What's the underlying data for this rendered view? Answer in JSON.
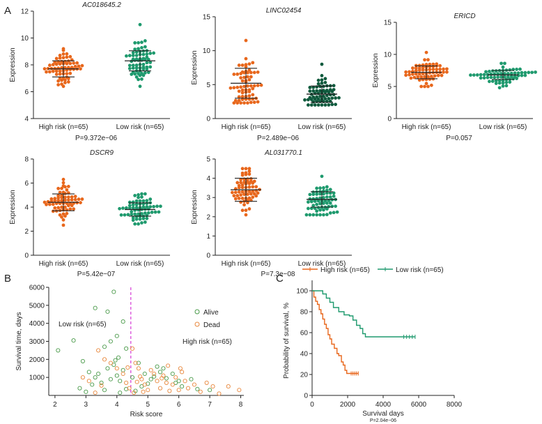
{
  "panel_labels": [
    "A",
    "B",
    "C"
  ],
  "colors": {
    "high": "#e8671c",
    "low": "#1f9a6e",
    "low_dark": "#0f5a3d",
    "alive": "#4a9a4a",
    "dead": "#e8873c",
    "cutoff": "#d63bd6",
    "axis": "#222222"
  },
  "chart_data": [
    {
      "id": "A1",
      "type": "scatter",
      "title": "AC018645.2",
      "ylabel": "Expression",
      "categories": [
        "High risk (n=65)",
        "Low risk (n=65)"
      ],
      "ylim": [
        4,
        12
      ],
      "yticks": [
        4,
        6,
        8,
        10,
        12
      ],
      "groups": [
        {
          "name": "High risk (n=65)",
          "n": 65,
          "mean": 7.7,
          "sd": 0.6,
          "min": 6.4,
          "max": 9.2,
          "color": "high"
        },
        {
          "name": "Low risk (n=65)",
          "n": 65,
          "mean": 8.3,
          "sd": 0.75,
          "min": 6.4,
          "max": 11.0,
          "color": "low"
        }
      ],
      "pvalue": "P=9.372e−06"
    },
    {
      "id": "A2",
      "type": "scatter",
      "title": "LINC02454",
      "ylabel": "Expression",
      "categories": [
        "High risk (n=65)",
        "Low risk (n=65)"
      ],
      "ylim": [
        0,
        15
      ],
      "yticks": [
        0,
        5,
        10,
        15
      ],
      "groups": [
        {
          "name": "High risk (n=65)",
          "n": 65,
          "mean": 5.2,
          "sd": 2.2,
          "min": 2.3,
          "max": 11.5,
          "color": "high"
        },
        {
          "name": "Low risk (n=65)",
          "n": 65,
          "mean": 3.6,
          "sd": 1.2,
          "min": 2.0,
          "max": 8.0,
          "color": "low_dark"
        }
      ],
      "pvalue": "P=2.489e−06"
    },
    {
      "id": "A3",
      "type": "scatter",
      "title": "ERICD",
      "ylabel": "Expression",
      "categories": [
        "High risk (n=65)",
        "Low risk (n=65)"
      ],
      "ylim": [
        0,
        15
      ],
      "yticks": [
        0,
        5,
        10,
        15
      ],
      "groups": [
        {
          "name": "High risk (n=65)",
          "n": 65,
          "mean": 7.2,
          "sd": 1.0,
          "min": 5.0,
          "max": 10.3,
          "color": "high"
        },
        {
          "name": "Low risk (n=65)",
          "n": 65,
          "mean": 6.8,
          "sd": 0.7,
          "min": 4.8,
          "max": 8.6,
          "color": "low"
        }
      ],
      "pvalue": "P=0.057"
    },
    {
      "id": "A4",
      "type": "scatter",
      "title": "DSCR9",
      "ylabel": "Expression",
      "categories": [
        "High risk (n=65)",
        "Low risk (n=65)"
      ],
      "ylim": [
        0,
        8
      ],
      "yticks": [
        0,
        2,
        4,
        6,
        8
      ],
      "groups": [
        {
          "name": "High risk (n=65)",
          "n": 65,
          "mean": 4.4,
          "sd": 0.7,
          "min": 2.5,
          "max": 6.3,
          "color": "high"
        },
        {
          "name": "Low risk (n=65)",
          "n": 65,
          "mean": 3.8,
          "sd": 0.55,
          "min": 2.6,
          "max": 5.1,
          "color": "low"
        }
      ],
      "pvalue": "P=5.42e−07"
    },
    {
      "id": "A5",
      "type": "scatter",
      "title": "AL031770.1",
      "ylabel": "Expression",
      "categories": [
        "High risk (n=65)",
        "Low risk (n=65)"
      ],
      "ylim": [
        0,
        5
      ],
      "yticks": [
        0,
        1,
        2,
        3,
        4,
        5
      ],
      "groups": [
        {
          "name": "High risk (n=65)",
          "n": 65,
          "mean": 3.4,
          "sd": 0.6,
          "min": 2.1,
          "max": 4.5,
          "color": "high"
        },
        {
          "name": "Low risk (n=65)",
          "n": 65,
          "mean": 2.9,
          "sd": 0.4,
          "min": 2.1,
          "max": 4.1,
          "color": "low"
        }
      ],
      "pvalue": "P=7.3e−08"
    },
    {
      "id": "B",
      "type": "scatter",
      "xlabel": "Risk score",
      "ylabel": "Survival time, days",
      "xlim": [
        1.8,
        8.1
      ],
      "ylim": [
        0,
        6000
      ],
      "xticks": [
        2,
        3,
        4,
        5,
        6,
        7,
        8
      ],
      "yticks": [
        1000,
        2000,
        3000,
        4000,
        5000,
        6000
      ],
      "cutoff": 4.45,
      "annotations": [
        "Low risk (n=65)",
        "High risk (n=65)"
      ],
      "legend": [
        "Alive",
        "Dead"
      ],
      "alive": [
        [
          2.1,
          2500
        ],
        [
          2.6,
          3050
        ],
        [
          3.3,
          4850
        ],
        [
          3.9,
          5750
        ],
        [
          3.7,
          4650
        ],
        [
          4.2,
          4100
        ],
        [
          4.0,
          3300
        ],
        [
          3.8,
          3000
        ],
        [
          3.6,
          2700
        ],
        [
          4.3,
          2600
        ],
        [
          2.9,
          1900
        ],
        [
          3.1,
          1300
        ],
        [
          3.3,
          1000
        ],
        [
          3.5,
          700
        ],
        [
          3.8,
          900
        ],
        [
          4.0,
          1100
        ],
        [
          4.1,
          800
        ],
        [
          4.2,
          1400
        ],
        [
          3.9,
          1700
        ],
        [
          3.7,
          1500
        ],
        [
          3.4,
          1200
        ],
        [
          3.2,
          600
        ],
        [
          2.8,
          400
        ],
        [
          3.0,
          200
        ],
        [
          3.6,
          300
        ],
        [
          4.3,
          350
        ],
        [
          4.1,
          150
        ],
        [
          4.6,
          250
        ],
        [
          4.8,
          500
        ],
        [
          5.0,
          650
        ],
        [
          5.2,
          1050
        ],
        [
          5.4,
          1300
        ],
        [
          5.6,
          950
        ],
        [
          5.9,
          700
        ],
        [
          6.1,
          500
        ],
        [
          6.4,
          900
        ],
        [
          6.6,
          350
        ],
        [
          7.0,
          300
        ],
        [
          4.7,
          1800
        ],
        [
          4.9,
          1200
        ],
        [
          5.1,
          900
        ],
        [
          5.3,
          1600
        ],
        [
          5.5,
          1500
        ],
        [
          5.8,
          1200
        ],
        [
          6.0,
          800
        ],
        [
          4.5,
          1000
        ],
        [
          3.95,
          1950
        ],
        [
          4.05,
          2100
        ]
      ],
      "dead": [
        [
          2.9,
          1000
        ],
        [
          3.1,
          800
        ],
        [
          3.4,
          2500
        ],
        [
          3.6,
          2000
        ],
        [
          3.8,
          1800
        ],
        [
          4.0,
          1500
        ],
        [
          4.2,
          1200
        ],
        [
          4.3,
          700
        ],
        [
          4.5,
          2600
        ],
        [
          4.6,
          1800
        ],
        [
          4.7,
          1500
        ],
        [
          4.8,
          900
        ],
        [
          4.9,
          600
        ],
        [
          5.0,
          300
        ],
        [
          5.1,
          1400
        ],
        [
          5.2,
          1200
        ],
        [
          5.3,
          800
        ],
        [
          5.4,
          400
        ],
        [
          5.5,
          1100
        ],
        [
          5.6,
          700
        ],
        [
          5.7,
          250
        ],
        [
          5.8,
          600
        ],
        [
          5.9,
          1000
        ],
        [
          6.0,
          300
        ],
        [
          6.1,
          1300
        ],
        [
          6.2,
          800
        ],
        [
          6.3,
          400
        ],
        [
          6.5,
          600
        ],
        [
          6.7,
          200
        ],
        [
          6.9,
          700
        ],
        [
          7.1,
          500
        ],
        [
          7.3,
          100
        ],
        [
          7.6,
          500
        ],
        [
          7.95,
          300
        ],
        [
          4.4,
          400
        ],
        [
          4.55,
          150
        ],
        [
          4.65,
          750
        ],
        [
          4.75,
          1050
        ],
        [
          3.5,
          550
        ],
        [
          3.3,
          150
        ],
        [
          4.85,
          200
        ],
        [
          5.45,
          950
        ],
        [
          5.65,
          1650
        ],
        [
          6.05,
          1500
        ],
        [
          4.35,
          1550
        ]
      ]
    },
    {
      "id": "C",
      "type": "line",
      "xlabel": "Survival days",
      "ylabel": "Probability of survival, %",
      "xlim": [
        0,
        8000
      ],
      "ylim": [
        0,
        110
      ],
      "xticks": [
        0,
        2000,
        4000,
        6000,
        8000
      ],
      "yticks": [
        0,
        20,
        40,
        60,
        80,
        100
      ],
      "pvalue": "P=2.04e−06",
      "series": [
        {
          "name": "High risk (n=65)",
          "color": "high",
          "points": [
            [
              0,
              100
            ],
            [
              100,
              94
            ],
            [
              200,
              90
            ],
            [
              300,
              87
            ],
            [
              400,
              82
            ],
            [
              500,
              78
            ],
            [
              600,
              73
            ],
            [
              700,
              68
            ],
            [
              800,
              64
            ],
            [
              900,
              58
            ],
            [
              1000,
              54
            ],
            [
              1100,
              49
            ],
            [
              1250,
              45
            ],
            [
              1400,
              40
            ],
            [
              1500,
              38
            ],
            [
              1650,
              32
            ],
            [
              1750,
              29
            ],
            [
              1850,
              24
            ],
            [
              1950,
              21
            ],
            [
              2100,
              21
            ],
            [
              2600,
              21
            ]
          ]
        },
        {
          "name": "Low risk (n=65)",
          "color": "low",
          "points": [
            [
              0,
              100
            ],
            [
              400,
              100
            ],
            [
              600,
              97
            ],
            [
              800,
              93
            ],
            [
              1000,
              89
            ],
            [
              1200,
              84
            ],
            [
              1500,
              80
            ],
            [
              1800,
              77
            ],
            [
              2100,
              76
            ],
            [
              2300,
              72
            ],
            [
              2500,
              67
            ],
            [
              2700,
              64
            ],
            [
              2850,
              59
            ],
            [
              3000,
              56
            ],
            [
              4000,
              56
            ],
            [
              5000,
              56
            ],
            [
              5800,
              56
            ]
          ]
        }
      ]
    }
  ]
}
